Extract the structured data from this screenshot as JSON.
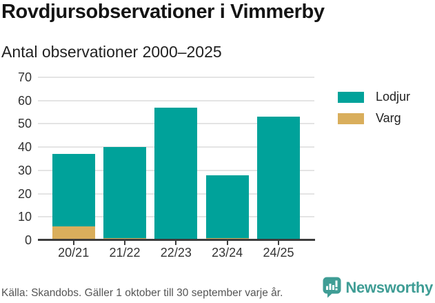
{
  "header": {
    "title": "Rovdjursobservationer i Vimmerby",
    "subtitle": "Antal observationer 2000–2025"
  },
  "chart_data": {
    "type": "bar",
    "stacked": true,
    "title": "Rovdjursobservationer i Vimmerby",
    "subtitle": "Antal observationer 2000–2025",
    "categories": [
      "20/21",
      "21/22",
      "22/23",
      "23/24",
      "24/25"
    ],
    "series": [
      {
        "name": "Lodjur",
        "color": "#00a29a",
        "values": [
          31,
          39,
          57,
          27,
          53
        ]
      },
      {
        "name": "Varg",
        "color": "#d9ae5c",
        "values": [
          6,
          1,
          0,
          1,
          0
        ]
      }
    ],
    "stack_totals": [
      37,
      40,
      57,
      28,
      53
    ],
    "xlabel": "",
    "ylabel": "",
    "yticks": [
      0,
      10,
      20,
      30,
      40,
      50,
      60,
      70
    ],
    "ylim": [
      0,
      70
    ],
    "grid": true,
    "legend_position": "right"
  },
  "colors": {
    "lodjur": "#00a29a",
    "varg": "#d9ae5c",
    "brand_teal": "#3f9d95",
    "gridline": "#e4e4e4",
    "axis": "#3d3d3d"
  },
  "footer": {
    "source": "Källa: Skandobs. Gäller 1 oktober till 30 september varje år.",
    "brand": "Newsworthy"
  }
}
